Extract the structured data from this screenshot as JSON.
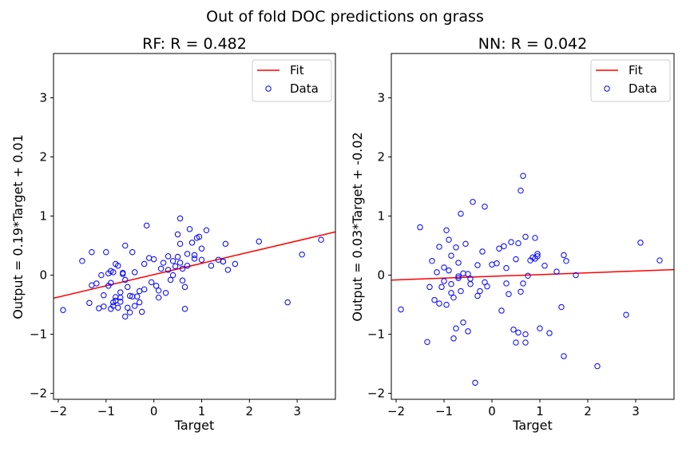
{
  "suptitle": "Out of fold DOC predictions on grass",
  "chart_data": [
    {
      "type": "scatter",
      "title": "RF: R = 0.482",
      "xlabel": "Target",
      "ylabel": "Output = 0.19*Target + 0.01",
      "xlim": [
        -2.1,
        3.8
      ],
      "ylim": [
        -2.1,
        3.75
      ],
      "xticks": [
        -2,
        -1,
        0,
        1,
        2,
        3
      ],
      "yticks": [
        -2,
        -1,
        0,
        1,
        2,
        3
      ],
      "grid": false,
      "legend_position": "top-right",
      "fit": {
        "label": "Fit",
        "color": "#ff0000",
        "slope": 0.19,
        "intercept": 0.01
      },
      "data_label": "Data",
      "marker_color": "#0000ff",
      "points": [
        [
          -1.9,
          -0.59
        ],
        [
          -1.5,
          0.24
        ],
        [
          -1.3,
          0.39
        ],
        [
          -1.3,
          -0.17
        ],
        [
          -1.35,
          -0.47
        ],
        [
          -1.2,
          -0.14
        ],
        [
          -1.05,
          -0.34
        ],
        [
          -1.05,
          -0.53
        ],
        [
          -1.0,
          0.39
        ],
        [
          -0.95,
          -0.18
        ],
        [
          -0.9,
          -0.13
        ],
        [
          -0.9,
          0.07
        ],
        [
          -0.85,
          0.05
        ],
        [
          -0.85,
          -0.46
        ],
        [
          -0.85,
          -0.52
        ],
        [
          -0.8,
          0.19
        ],
        [
          -0.8,
          -0.37
        ],
        [
          -0.75,
          0.16
        ],
        [
          -0.75,
          -0.55
        ],
        [
          -0.7,
          -0.45
        ],
        [
          -0.7,
          -0.38
        ],
        [
          -0.7,
          -0.29
        ],
        [
          -0.65,
          0.02
        ],
        [
          -0.6,
          -0.08
        ],
        [
          -0.6,
          0.5
        ],
        [
          -0.55,
          -0.2
        ],
        [
          -0.55,
          -0.55
        ],
        [
          -0.5,
          -0.35
        ],
        [
          -0.45,
          0.39
        ],
        [
          -0.45,
          -0.36
        ],
        [
          -0.4,
          0.05
        ],
        [
          -0.35,
          -0.36
        ],
        [
          -0.3,
          -0.46
        ],
        [
          -0.3,
          -0.27
        ],
        [
          -0.25,
          -0.62
        ],
        [
          -0.2,
          0.19
        ],
        [
          -0.15,
          0.84
        ],
        [
          -0.1,
          0.29
        ],
        [
          -0.05,
          -0.12
        ],
        [
          0.0,
          0.27
        ],
        [
          0.05,
          -0.18
        ],
        [
          0.1,
          -0.38
        ],
        [
          0.15,
          0.11
        ],
        [
          0.2,
          0.21
        ],
        [
          0.25,
          -0.3
        ],
        [
          0.3,
          0.09
        ],
        [
          0.35,
          -0.08
        ],
        [
          0.4,
          0.24
        ],
        [
          0.45,
          0.15
        ],
        [
          0.5,
          0.69
        ],
        [
          0.5,
          0.31
        ],
        [
          0.55,
          0.96
        ],
        [
          0.55,
          0.53
        ],
        [
          0.6,
          -0.09
        ],
        [
          0.6,
          0.11
        ],
        [
          0.65,
          -0.57
        ],
        [
          0.65,
          -0.2
        ],
        [
          0.7,
          0.36
        ],
        [
          0.75,
          0.78
        ],
        [
          0.8,
          0.55
        ],
        [
          0.85,
          0.34
        ],
        [
          0.85,
          0.28
        ],
        [
          0.9,
          0.63
        ],
        [
          0.95,
          0.65
        ],
        [
          1.0,
          0.26
        ],
        [
          1.1,
          0.76
        ],
        [
          1.2,
          0.16
        ],
        [
          1.35,
          0.26
        ],
        [
          1.45,
          0.23
        ],
        [
          1.5,
          0.53
        ],
        [
          1.55,
          0.09
        ],
        [
          1.7,
          0.19
        ],
        [
          2.2,
          0.57
        ],
        [
          2.8,
          -0.46
        ],
        [
          3.1,
          0.35
        ],
        [
          3.5,
          0.6
        ],
        [
          -1.15,
          -0.56
        ],
        [
          -1.1,
          0.0
        ],
        [
          -0.95,
          0.03
        ],
        [
          -0.9,
          -0.57
        ],
        [
          -0.8,
          -0.43
        ],
        [
          -0.65,
          0.04
        ],
        [
          -0.6,
          -0.7
        ],
        [
          -0.5,
          -0.63
        ],
        [
          -0.4,
          -0.52
        ],
        [
          -0.2,
          -0.24
        ],
        [
          0.1,
          -0.26
        ],
        [
          0.3,
          0.32
        ],
        [
          0.4,
          0.0
        ],
        [
          0.55,
          0.21
        ],
        [
          0.7,
          0.16
        ],
        [
          1.0,
          0.45
        ],
        [
          1.45,
          0.23
        ]
      ]
    },
    {
      "type": "scatter",
      "title": "NN: R = 0.042",
      "xlabel": "Target",
      "ylabel": "Output = 0.03*Target + -0.02",
      "xlim": [
        -2.1,
        3.8
      ],
      "ylim": [
        -2.1,
        3.75
      ],
      "xticks": [
        -2,
        -1,
        0,
        1,
        2,
        3
      ],
      "yticks": [
        -2,
        -1,
        0,
        1,
        2,
        3
      ],
      "grid": false,
      "legend_position": "top-right",
      "fit": {
        "label": "Fit",
        "color": "#ff0000",
        "slope": 0.03,
        "intercept": -0.02
      },
      "data_label": "Data",
      "marker_color": "#0000ff",
      "points": [
        [
          -1.9,
          -0.58
        ],
        [
          -1.5,
          0.81
        ],
        [
          -1.35,
          -1.13
        ],
        [
          -1.3,
          -0.2
        ],
        [
          -1.25,
          0.24
        ],
        [
          -1.2,
          -0.42
        ],
        [
          -1.15,
          0.05
        ],
        [
          -1.1,
          -0.48
        ],
        [
          -1.05,
          -0.2
        ],
        [
          -1.0,
          0.13
        ],
        [
          -1.0,
          -0.1
        ],
        [
          -0.95,
          0.76
        ],
        [
          -0.95,
          -0.5
        ],
        [
          -0.9,
          0.6
        ],
        [
          -0.9,
          0.08
        ],
        [
          -0.85,
          0.33
        ],
        [
          -0.85,
          -0.15
        ],
        [
          -0.8,
          -0.38
        ],
        [
          -0.8,
          -1.07
        ],
        [
          -0.75,
          0.47
        ],
        [
          -0.75,
          -0.9
        ],
        [
          -0.7,
          0.21
        ],
        [
          -0.7,
          -0.02
        ],
        [
          -0.65,
          1.04
        ],
        [
          -0.65,
          -0.27
        ],
        [
          -0.6,
          -0.8
        ],
        [
          -0.55,
          0.53
        ],
        [
          -0.5,
          0.02
        ],
        [
          -0.5,
          -0.95
        ],
        [
          -0.45,
          -0.06
        ],
        [
          -0.4,
          1.24
        ],
        [
          -0.35,
          -1.82
        ],
        [
          -0.3,
          -0.35
        ],
        [
          -0.25,
          -0.27
        ],
        [
          -0.2,
          0.4
        ],
        [
          -0.15,
          1.16
        ],
        [
          -0.1,
          -0.19
        ],
        [
          0.0,
          0.18
        ],
        [
          0.1,
          0.2
        ],
        [
          0.15,
          0.45
        ],
        [
          0.2,
          -0.6
        ],
        [
          0.25,
          0.49
        ],
        [
          0.3,
          -0.14
        ],
        [
          0.4,
          0.56
        ],
        [
          0.45,
          -0.92
        ],
        [
          0.5,
          -1.14
        ],
        [
          0.55,
          0.54
        ],
        [
          0.55,
          -0.97
        ],
        [
          0.6,
          -0.28
        ],
        [
          0.6,
          1.43
        ],
        [
          0.65,
          1.68
        ],
        [
          0.7,
          0.65
        ],
        [
          0.7,
          -1.0
        ],
        [
          0.75,
          -0.01
        ],
        [
          0.8,
          0.25
        ],
        [
          0.9,
          0.28
        ],
        [
          0.9,
          0.63
        ],
        [
          0.95,
          0.36
        ],
        [
          1.0,
          -0.9
        ],
        [
          1.1,
          0.16
        ],
        [
          1.2,
          -0.98
        ],
        [
          1.35,
          0.06
        ],
        [
          1.45,
          -0.54
        ],
        [
          1.5,
          0.34
        ],
        [
          1.5,
          -1.37
        ],
        [
          1.55,
          0.24
        ],
        [
          1.75,
          0.0
        ],
        [
          2.2,
          -1.54
        ],
        [
          2.8,
          -0.67
        ],
        [
          3.1,
          0.55
        ],
        [
          3.5,
          0.25
        ],
        [
          -1.1,
          0.48
        ],
        [
          -0.85,
          -0.3
        ],
        [
          -0.7,
          -0.05
        ],
        [
          -0.6,
          0.03
        ],
        [
          -0.45,
          -0.15
        ],
        [
          -0.3,
          0.17
        ],
        [
          -0.15,
          -0.12
        ],
        [
          0.3,
          0.12
        ],
        [
          0.35,
          -0.32
        ],
        [
          0.5,
          0.27
        ],
        [
          0.65,
          -0.14
        ],
        [
          0.7,
          -1.14
        ],
        [
          0.85,
          0.3
        ],
        [
          0.95,
          0.32
        ]
      ]
    }
  ]
}
